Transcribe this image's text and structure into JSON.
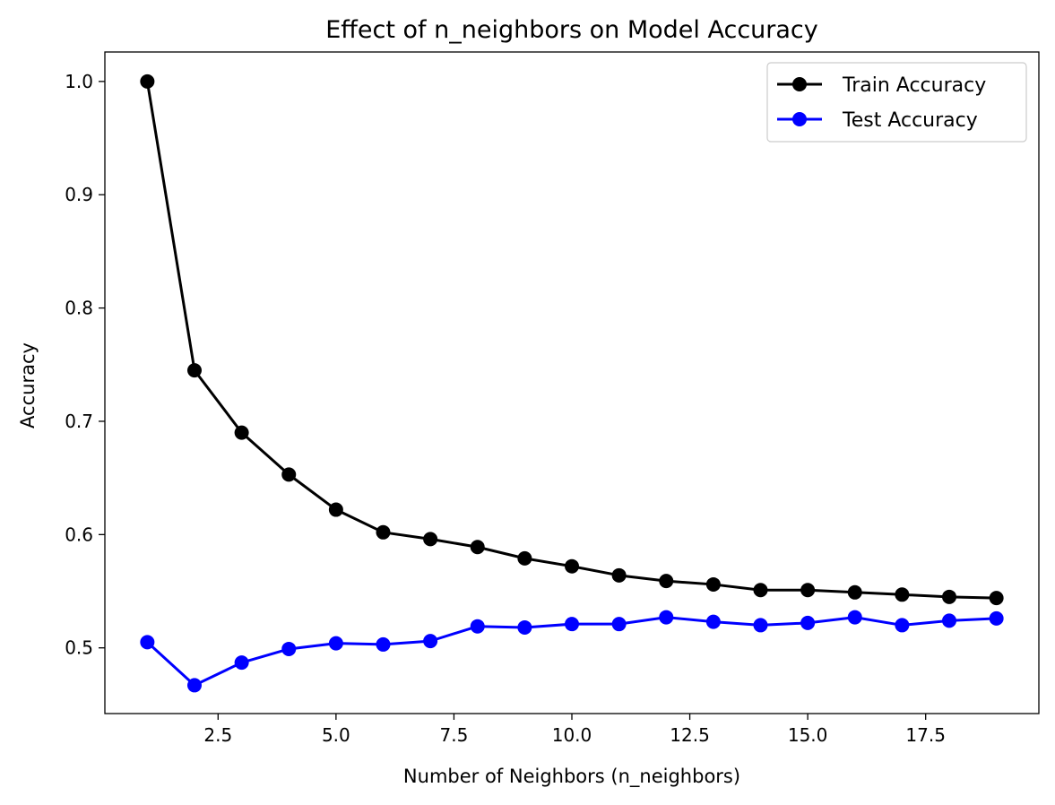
{
  "chart_data": {
    "type": "line",
    "title": "Effect of n_neighbors on Model Accuracy",
    "xlabel": "Number of Neighbors (n_neighbors)",
    "ylabel": "Accuracy",
    "x": [
      1,
      2,
      3,
      4,
      5,
      6,
      7,
      8,
      9,
      10,
      11,
      12,
      13,
      14,
      15,
      16,
      17,
      18,
      19
    ],
    "xlim": [
      0.1,
      19.9
    ],
    "ylim": [
      0.442,
      1.026
    ],
    "xticks": [
      2.5,
      5.0,
      7.5,
      10.0,
      12.5,
      15.0,
      17.5
    ],
    "xtick_labels": [
      "2.5",
      "5.0",
      "7.5",
      "10.0",
      "12.5",
      "15.0",
      "17.5"
    ],
    "yticks": [
      0.5,
      0.6,
      0.7,
      0.8,
      0.9,
      1.0
    ],
    "ytick_labels": [
      "0.5",
      "0.6",
      "0.7",
      "0.8",
      "0.9",
      "1.0"
    ],
    "grid": false,
    "legend_position": "top-right",
    "series": [
      {
        "name": "Train Accuracy",
        "color": "#000000",
        "marker": "circle",
        "values": [
          1.0,
          0.745,
          0.69,
          0.653,
          0.622,
          0.602,
          0.596,
          0.589,
          0.579,
          0.572,
          0.564,
          0.559,
          0.556,
          0.551,
          0.551,
          0.549,
          0.547,
          0.545,
          0.544
        ]
      },
      {
        "name": "Test Accuracy",
        "color": "#0000ff",
        "marker": "circle",
        "values": [
          0.505,
          0.467,
          0.487,
          0.499,
          0.504,
          0.503,
          0.506,
          0.519,
          0.518,
          0.521,
          0.521,
          0.527,
          0.523,
          0.52,
          0.522,
          0.527,
          0.52,
          0.524,
          0.526
        ]
      }
    ]
  }
}
